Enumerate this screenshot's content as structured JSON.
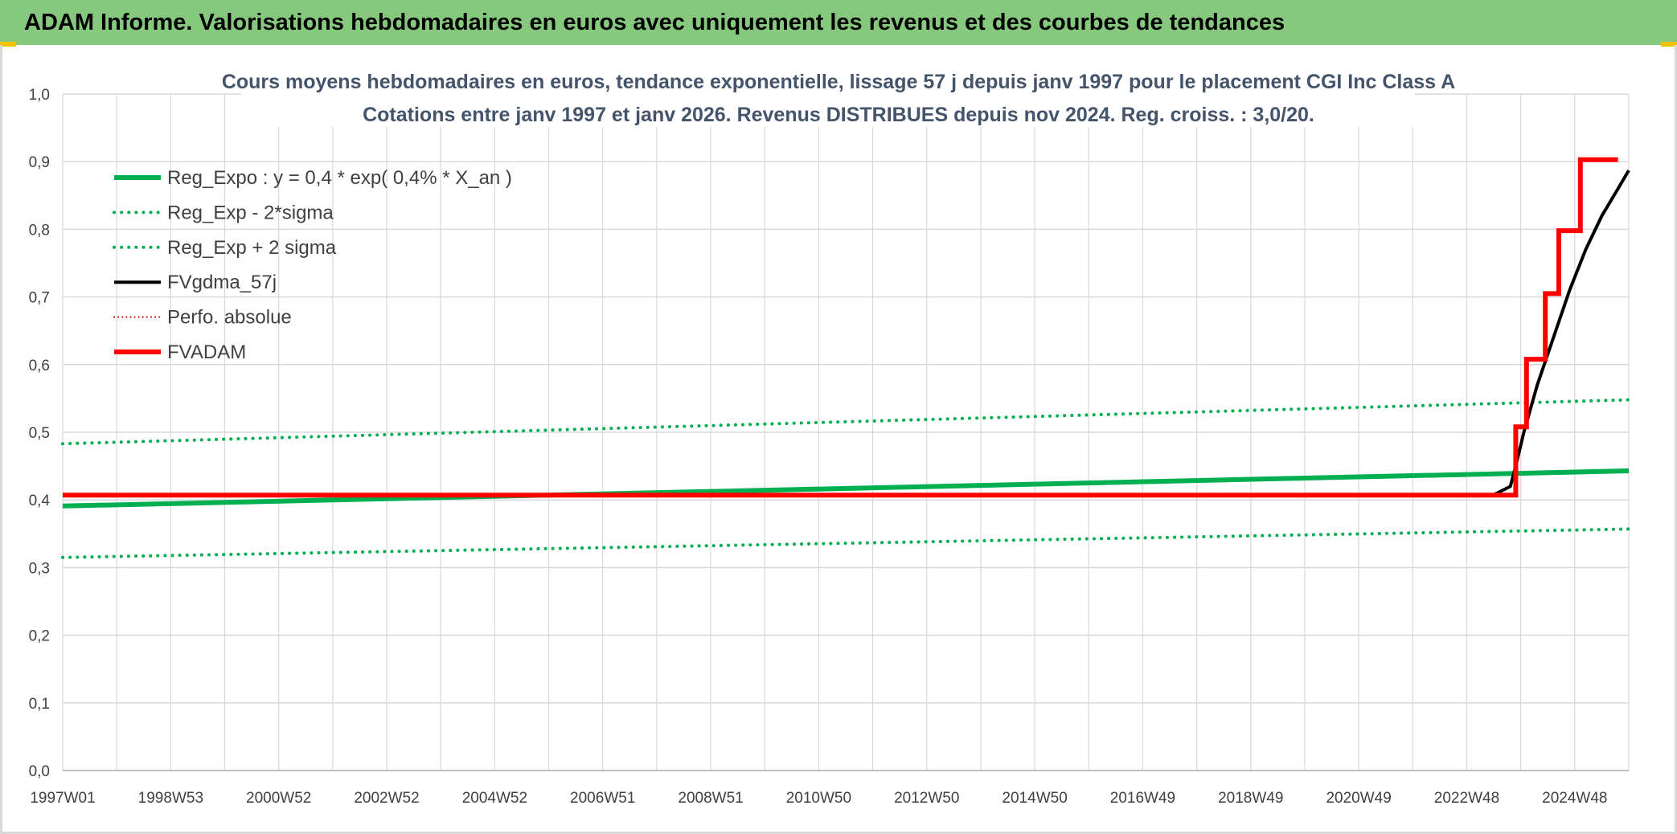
{
  "header": {
    "banner_title": "ADAM Informe. Valorisations hebdomadaires en euros avec uniquement les revenus et des courbes de tendances"
  },
  "colors": {
    "banner_bg": "#86c87d",
    "reg_expo": "#00b050",
    "fvgdma": "#000000",
    "fvadam": "#ff0000",
    "perfo": "#c00000",
    "grid": "#d9d9d9",
    "text": "#404040"
  },
  "chart_data": {
    "type": "line",
    "title_line1": "Cours moyens hebdomadaires en euros, tendance exponentielle, lissage 57 j depuis janv 1997 pour le placement CGI Inc Class A",
    "title_line2": "Cotations entre janv 1997 et janv 2026. Revenus DISTRIBUES depuis nov 2024. Reg. croiss. : 3,0/20.",
    "x_tick_labels": [
      "1997W01",
      "1998W53",
      "2000W52",
      "2002W52",
      "2004W52",
      "2006W51",
      "2008W51",
      "2010W50",
      "2012W50",
      "2014W50",
      "2016W49",
      "2018W49",
      "2020W49",
      "2022W48",
      "2024W48"
    ],
    "x_range": [
      1997.0,
      2026.1
    ],
    "ylim": [
      0,
      1.0
    ],
    "y_ticks": [
      0.0,
      0.1,
      0.2,
      0.3,
      0.4,
      0.5,
      0.6,
      0.7,
      0.8,
      0.9,
      1.0
    ],
    "y_tick_labels": [
      "0,0",
      "0,1",
      "0,2",
      "0,3",
      "0,4",
      "0,5",
      "0,6",
      "0,7",
      "0,8",
      "0,9",
      "1,0"
    ],
    "grid": true,
    "legend_position": "top-left",
    "legend": [
      {
        "key": "reg_expo",
        "label": "Reg_Expo : y = 0,4 * exp( 0,4% *  X_an )",
        "color": "#00b050",
        "style": "solid",
        "width": 6
      },
      {
        "key": "reg_minus",
        "label": "Reg_Exp - 2*sigma",
        "color": "#00b050",
        "style": "dotted",
        "width": 4
      },
      {
        "key": "reg_plus",
        "label": "Reg_Exp + 2 sigma",
        "color": "#00b050",
        "style": "dotted",
        "width": 4
      },
      {
        "key": "fvgdma",
        "label": "FVgdma_57j",
        "color": "#000000",
        "style": "solid",
        "width": 4
      },
      {
        "key": "perfo",
        "label": "Perfo. absolue",
        "color": "#c00000",
        "style": "dotted",
        "width": 2
      },
      {
        "key": "fvadam",
        "label": "FVADAM",
        "color": "#ff0000",
        "style": "solid",
        "width": 6
      }
    ],
    "series": [
      {
        "key": "reg_expo",
        "name": "Reg_Expo : y = 0,4 * exp( 0,4% *  X_an )",
        "x": [
          1997.0,
          2026.1
        ],
        "y": [
          0.391,
          0.443
        ]
      },
      {
        "key": "reg_minus",
        "name": "Reg_Exp - 2*sigma",
        "x": [
          1997.0,
          2026.1
        ],
        "y": [
          0.315,
          0.357
        ]
      },
      {
        "key": "reg_plus",
        "name": "Reg_Exp + 2 sigma",
        "x": [
          1997.0,
          2026.1
        ],
        "y": [
          0.483,
          0.548
        ]
      },
      {
        "key": "fvgdma",
        "name": "FVgdma_57j",
        "x": [
          1997.0,
          2023.0,
          2023.6,
          2023.9,
          2024.0,
          2024.15,
          2024.4,
          2024.7,
          2025.0,
          2025.3,
          2025.6,
          2025.9,
          2026.1
        ],
        "y": [
          0.407,
          0.407,
          0.408,
          0.42,
          0.45,
          0.5,
          0.57,
          0.64,
          0.71,
          0.77,
          0.82,
          0.86,
          0.887
        ]
      },
      {
        "key": "fvadam",
        "name": "FVADAM",
        "x": [
          1997.0,
          2024.0,
          2024.0,
          2024.2,
          2024.2,
          2024.55,
          2024.55,
          2024.8,
          2024.8,
          2025.2,
          2025.2,
          2025.65,
          2025.65,
          2025.9
        ],
        "y": [
          0.407,
          0.407,
          0.508,
          0.508,
          0.608,
          0.608,
          0.705,
          0.705,
          0.798,
          0.798,
          0.903,
          0.903,
          0.903,
          0.903
        ]
      }
    ]
  }
}
